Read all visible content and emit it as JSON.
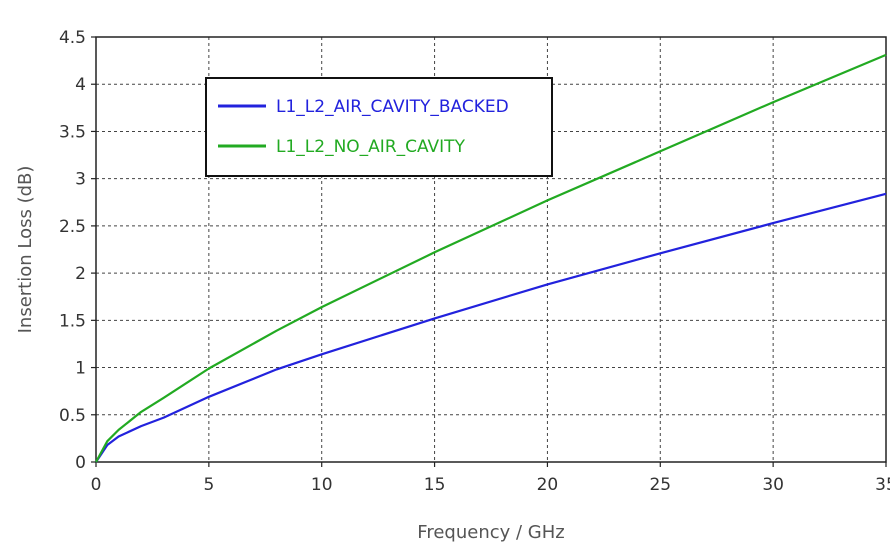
{
  "chart_data": {
    "type": "line",
    "xlabel": "Frequency / GHz",
    "ylabel": "Insertion Loss (dB)",
    "xlim": [
      0,
      35
    ],
    "ylim": [
      0,
      4.5
    ],
    "xticks": [
      0,
      5,
      10,
      15,
      20,
      25,
      30,
      35
    ],
    "yticks": [
      0,
      0.5,
      1,
      1.5,
      2,
      2.5,
      3,
      3.5,
      4,
      4.5
    ],
    "xtick_labels": [
      "0",
      "5",
      "10",
      "15",
      "20",
      "25",
      "30",
      "35"
    ],
    "ytick_labels": [
      "0",
      "0.5",
      "1",
      "1.5",
      "2",
      "2.5",
      "3",
      "3.5",
      "4",
      "4.5"
    ],
    "grid": true,
    "legend_position": "top-left",
    "series": [
      {
        "name": "L1_L2_AIR_CAVITY_BACKED",
        "color": "#2222dd",
        "x": [
          0,
          0.5,
          1,
          2,
          3,
          5,
          8,
          10,
          15,
          20,
          25,
          30,
          35
        ],
        "y": [
          0,
          0.18,
          0.27,
          0.38,
          0.47,
          0.69,
          0.98,
          1.14,
          1.52,
          1.88,
          2.21,
          2.53,
          2.84
        ]
      },
      {
        "name": "L1_L2_NO_AIR_CAVITY",
        "color": "#22aa22",
        "x": [
          0,
          0.5,
          1,
          2,
          3,
          5,
          8,
          10,
          15,
          20,
          25,
          30,
          35
        ],
        "y": [
          0,
          0.22,
          0.34,
          0.53,
          0.68,
          0.99,
          1.39,
          1.64,
          2.22,
          2.77,
          3.29,
          3.81,
          4.31
        ]
      }
    ]
  }
}
